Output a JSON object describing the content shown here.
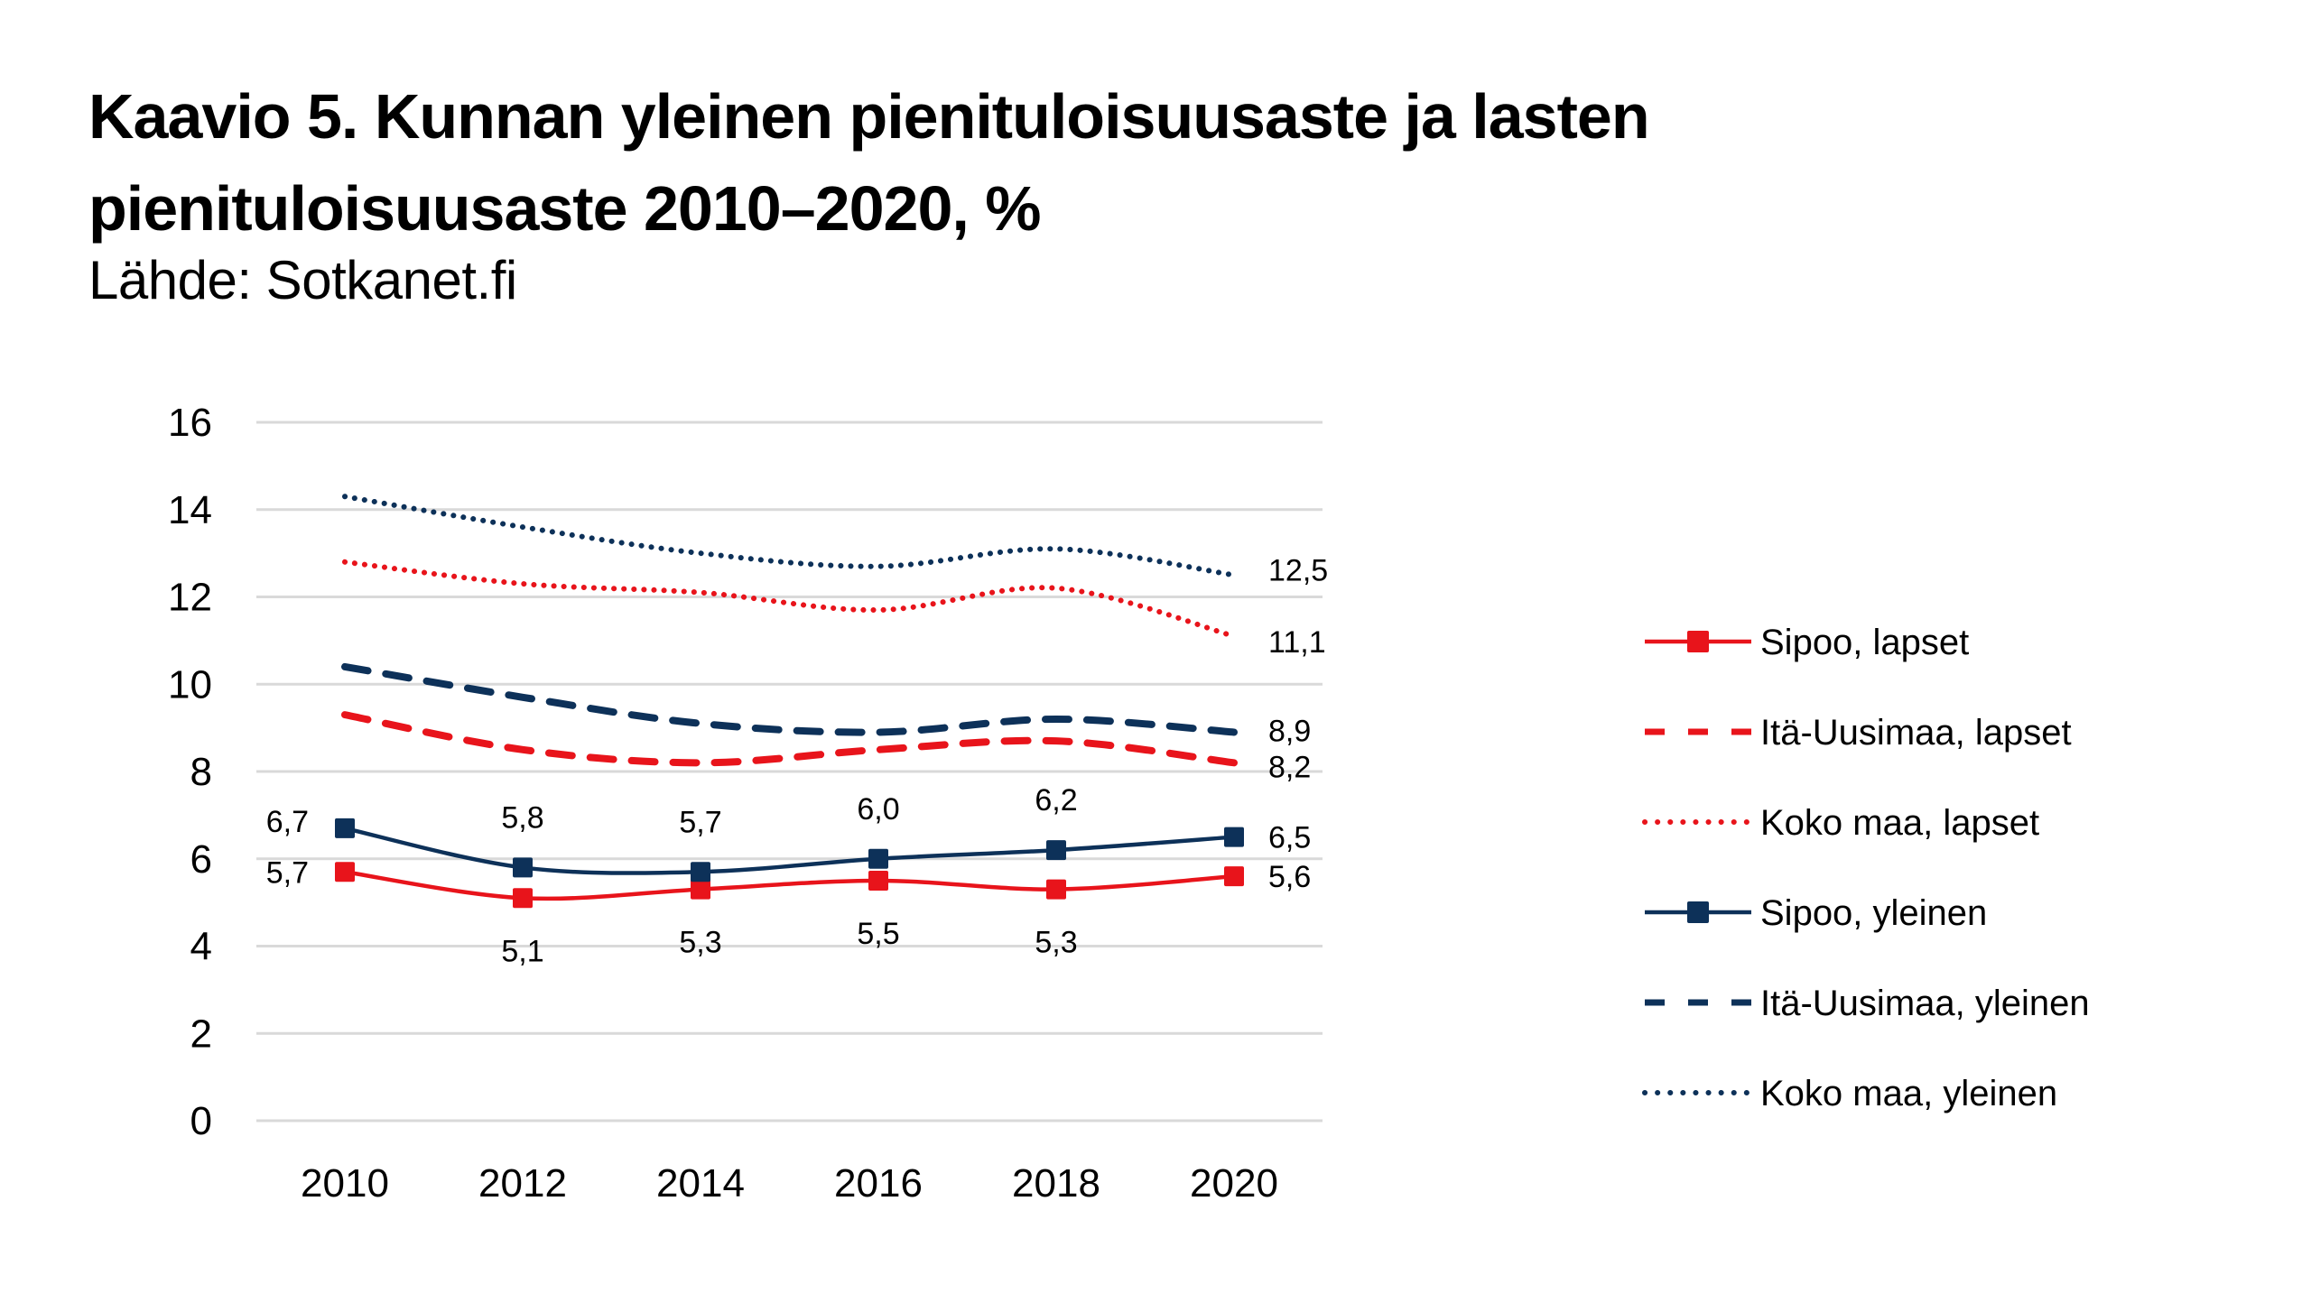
{
  "chart_data": {
    "type": "line",
    "title": "Kaavio 5. Kunnan yleinen pienituloisuusaste ja lasten pienituloisuusaste 2010–2020, %",
    "subtitle": "Lähde: Sotkanet.fi",
    "xlabel": "",
    "ylabel": "",
    "categories": [
      "2010",
      "2012",
      "2014",
      "2016",
      "2018",
      "2020"
    ],
    "ylim": [
      0,
      16
    ],
    "yticks": [
      "0",
      "2",
      "4",
      "6",
      "8",
      "10",
      "12",
      "14",
      "16"
    ],
    "grid": true,
    "legend_position": "right",
    "series": [
      {
        "name": "Sipoo, lapset",
        "color": "#e8141b",
        "style": "solid-marker",
        "values": [
          5.7,
          5.1,
          5.3,
          5.5,
          5.3,
          5.6
        ],
        "labels": [
          "5,7",
          "5,1",
          "5,3",
          "5,5",
          "5,3",
          "5,6"
        ]
      },
      {
        "name": "Itä-Uusimaa, lapset",
        "color": "#e8141b",
        "style": "dashed",
        "values": [
          9.3,
          8.5,
          8.2,
          8.5,
          8.7,
          8.2
        ],
        "labels": [
          "",
          "",
          "",
          "",
          "",
          "8,2"
        ]
      },
      {
        "name": "Koko maa, lapset",
        "color": "#e8141b",
        "style": "dotted",
        "values": [
          12.8,
          12.3,
          12.1,
          11.7,
          12.2,
          11.1
        ],
        "labels": [
          "",
          "",
          "",
          "",
          "",
          "11,1"
        ]
      },
      {
        "name": "Sipoo, yleinen",
        "color": "#0d3159",
        "style": "solid-marker",
        "values": [
          6.7,
          5.8,
          5.7,
          6.0,
          6.2,
          6.5
        ],
        "labels": [
          "6,7",
          "5,8",
          "5,7",
          "6,0",
          "6,2",
          "6,5"
        ]
      },
      {
        "name": "Itä-Uusimaa, yleinen",
        "color": "#0d3159",
        "style": "dashed",
        "values": [
          10.4,
          9.7,
          9.1,
          8.9,
          9.2,
          8.9
        ],
        "labels": [
          "",
          "",
          "",
          "",
          "",
          "8,9"
        ]
      },
      {
        "name": "Koko maa, yleinen",
        "color": "#0d3159",
        "style": "dotted",
        "values": [
          14.3,
          13.6,
          13.0,
          12.7,
          13.1,
          12.5
        ],
        "labels": [
          "",
          "",
          "",
          "",
          "",
          "12,5"
        ]
      }
    ]
  }
}
